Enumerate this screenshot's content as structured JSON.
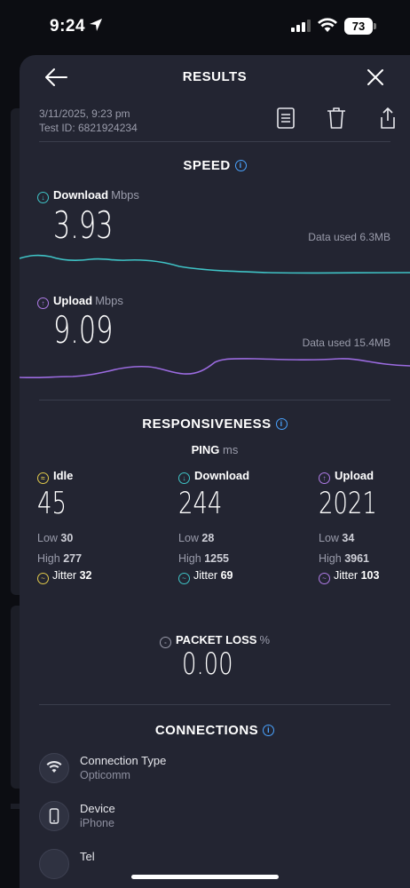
{
  "status_bar": {
    "time": "9:24",
    "battery": "73"
  },
  "header": {
    "title": "RESULTS"
  },
  "meta": {
    "date": "3/11/2025, 9:23 pm",
    "test_id": "Test ID: 6821924234"
  },
  "speed": {
    "title": "SPEED",
    "download": {
      "label": "Download",
      "unit": "Mbps",
      "value": "3.93",
      "data_used": "Data used 6.3MB",
      "color": "#3fc3c6"
    },
    "upload": {
      "label": "Upload",
      "unit": "Mbps",
      "value": "9.09",
      "data_used": "Data used 15.4MB",
      "color": "#9b6be0"
    }
  },
  "responsiveness": {
    "title": "RESPONSIVENESS",
    "ping_label": "PING",
    "ping_unit": "ms",
    "columns": [
      {
        "label": "Idle",
        "value": "45",
        "low_label": "Low",
        "low": "30",
        "high_label": "High",
        "high": "277",
        "jitter_label": "Jitter",
        "jitter": "32",
        "color": "#e0c94b"
      },
      {
        "label": "Download",
        "value": "244",
        "low_label": "Low",
        "low": "28",
        "high_label": "High",
        "high": "1255",
        "jitter_label": "Jitter",
        "jitter": "69",
        "color": "#3fc3c6"
      },
      {
        "label": "Upload",
        "value": "2021",
        "low_label": "Low",
        "low": "34",
        "high_label": "High",
        "high": "3961",
        "jitter_label": "Jitter",
        "jitter": "103",
        "color": "#b07ce8"
      }
    ]
  },
  "packet_loss": {
    "label": "PACKET LOSS",
    "unit": "%",
    "value": "0.00"
  },
  "connections": {
    "title": "CONNECTIONS",
    "items": [
      {
        "label": "Connection Type",
        "value": "Opticomm",
        "icon": "wifi-icon"
      },
      {
        "label": "Device",
        "value": "iPhone",
        "icon": "phone-icon"
      },
      {
        "label": "Tel",
        "value": "",
        "icon": "network-icon"
      }
    ]
  }
}
